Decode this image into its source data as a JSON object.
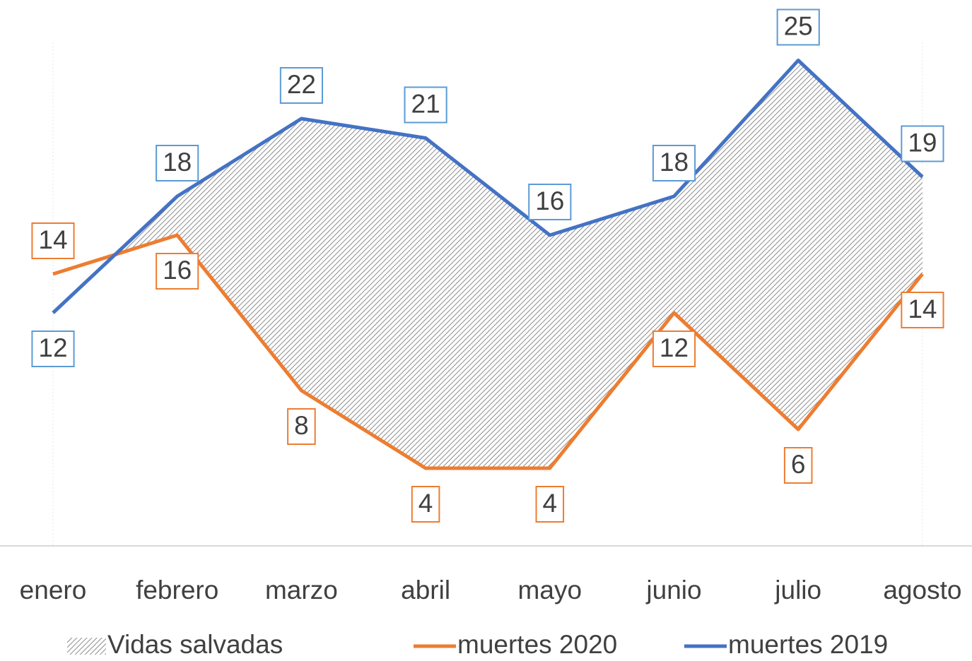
{
  "chart_data": {
    "type": "line",
    "categories": [
      "enero",
      "febrero",
      "marzo",
      "abril",
      "mayo",
      "junio",
      "julio",
      "agosto"
    ],
    "area": {
      "name": "Vidas salvadas",
      "color": "#8c8c8c",
      "pattern": "hatch"
    },
    "series": [
      {
        "name": "muertes 2020",
        "color": "#ed7d31",
        "values": [
          14,
          16,
          8,
          4,
          4,
          12,
          6,
          14
        ]
      },
      {
        "name": "muertes 2019",
        "color": "#4472c4",
        "values": [
          12,
          18,
          22,
          21,
          16,
          18,
          25,
          19
        ]
      }
    ],
    "ylim": [
      0,
      28
    ],
    "grid": false,
    "legend": "bottom",
    "data_labels": true
  }
}
